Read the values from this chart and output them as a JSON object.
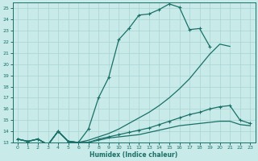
{
  "xlabel": "Humidex (Indice chaleur)",
  "bg_color": "#c8eae8",
  "grid_color": "#a8d4d2",
  "line_color": "#1a7068",
  "xlim": [
    -0.5,
    23.5
  ],
  "ylim": [
    13,
    25.5
  ],
  "xticks": [
    0,
    1,
    2,
    3,
    4,
    5,
    6,
    7,
    8,
    9,
    10,
    11,
    12,
    13,
    14,
    15,
    16,
    17,
    18,
    19,
    20,
    21,
    22,
    23
  ],
  "yticks": [
    13,
    14,
    15,
    16,
    17,
    18,
    19,
    20,
    21,
    22,
    23,
    24,
    25
  ],
  "s1_x": [
    0,
    1,
    2,
    3,
    4,
    5,
    6,
    7,
    8,
    9,
    10,
    11,
    12,
    13,
    14,
    15,
    16,
    17,
    18,
    19
  ],
  "s1_y": [
    13.3,
    13.1,
    13.3,
    12.8,
    14.0,
    13.1,
    13.0,
    14.2,
    17.0,
    18.8,
    22.2,
    23.2,
    24.4,
    24.5,
    24.9,
    25.4,
    25.1,
    23.1,
    23.2,
    21.6
  ],
  "s2_x": [
    0,
    1,
    2,
    3,
    4,
    5,
    6,
    7,
    8,
    9,
    10,
    11,
    12,
    13,
    14,
    15,
    16,
    17,
    18,
    19,
    20,
    21,
    22,
    23
  ],
  "s2_y": [
    13.3,
    13.1,
    13.3,
    12.8,
    14.0,
    13.1,
    13.0,
    13.0,
    13.3,
    13.5,
    13.7,
    13.9,
    14.1,
    14.3,
    14.6,
    14.9,
    15.2,
    15.5,
    15.7,
    16.0,
    16.2,
    16.3,
    15.0,
    14.7
  ],
  "s3_x": [
    0,
    1,
    2,
    3,
    4,
    5,
    6,
    7,
    8,
    9,
    10,
    11,
    12,
    13,
    14,
    15,
    16,
    17,
    18,
    19,
    20,
    21
  ],
  "s3_y": [
    13.3,
    13.1,
    13.3,
    12.8,
    14.0,
    13.1,
    13.0,
    13.2,
    13.5,
    13.8,
    14.2,
    14.7,
    15.2,
    15.7,
    16.3,
    17.0,
    17.8,
    18.7,
    19.8,
    20.9,
    21.8,
    21.6
  ],
  "s4_x": [
    0,
    1,
    2,
    3,
    4,
    5,
    6,
    7,
    8,
    9,
    10,
    11,
    12,
    13,
    14,
    15,
    16,
    17,
    18,
    19,
    20,
    21,
    22,
    23
  ],
  "s4_y": [
    13.3,
    13.1,
    13.3,
    12.8,
    14.0,
    13.1,
    13.0,
    13.0,
    13.2,
    13.4,
    13.5,
    13.6,
    13.7,
    13.9,
    14.1,
    14.3,
    14.5,
    14.6,
    14.7,
    14.8,
    14.9,
    14.9,
    14.6,
    14.5
  ]
}
